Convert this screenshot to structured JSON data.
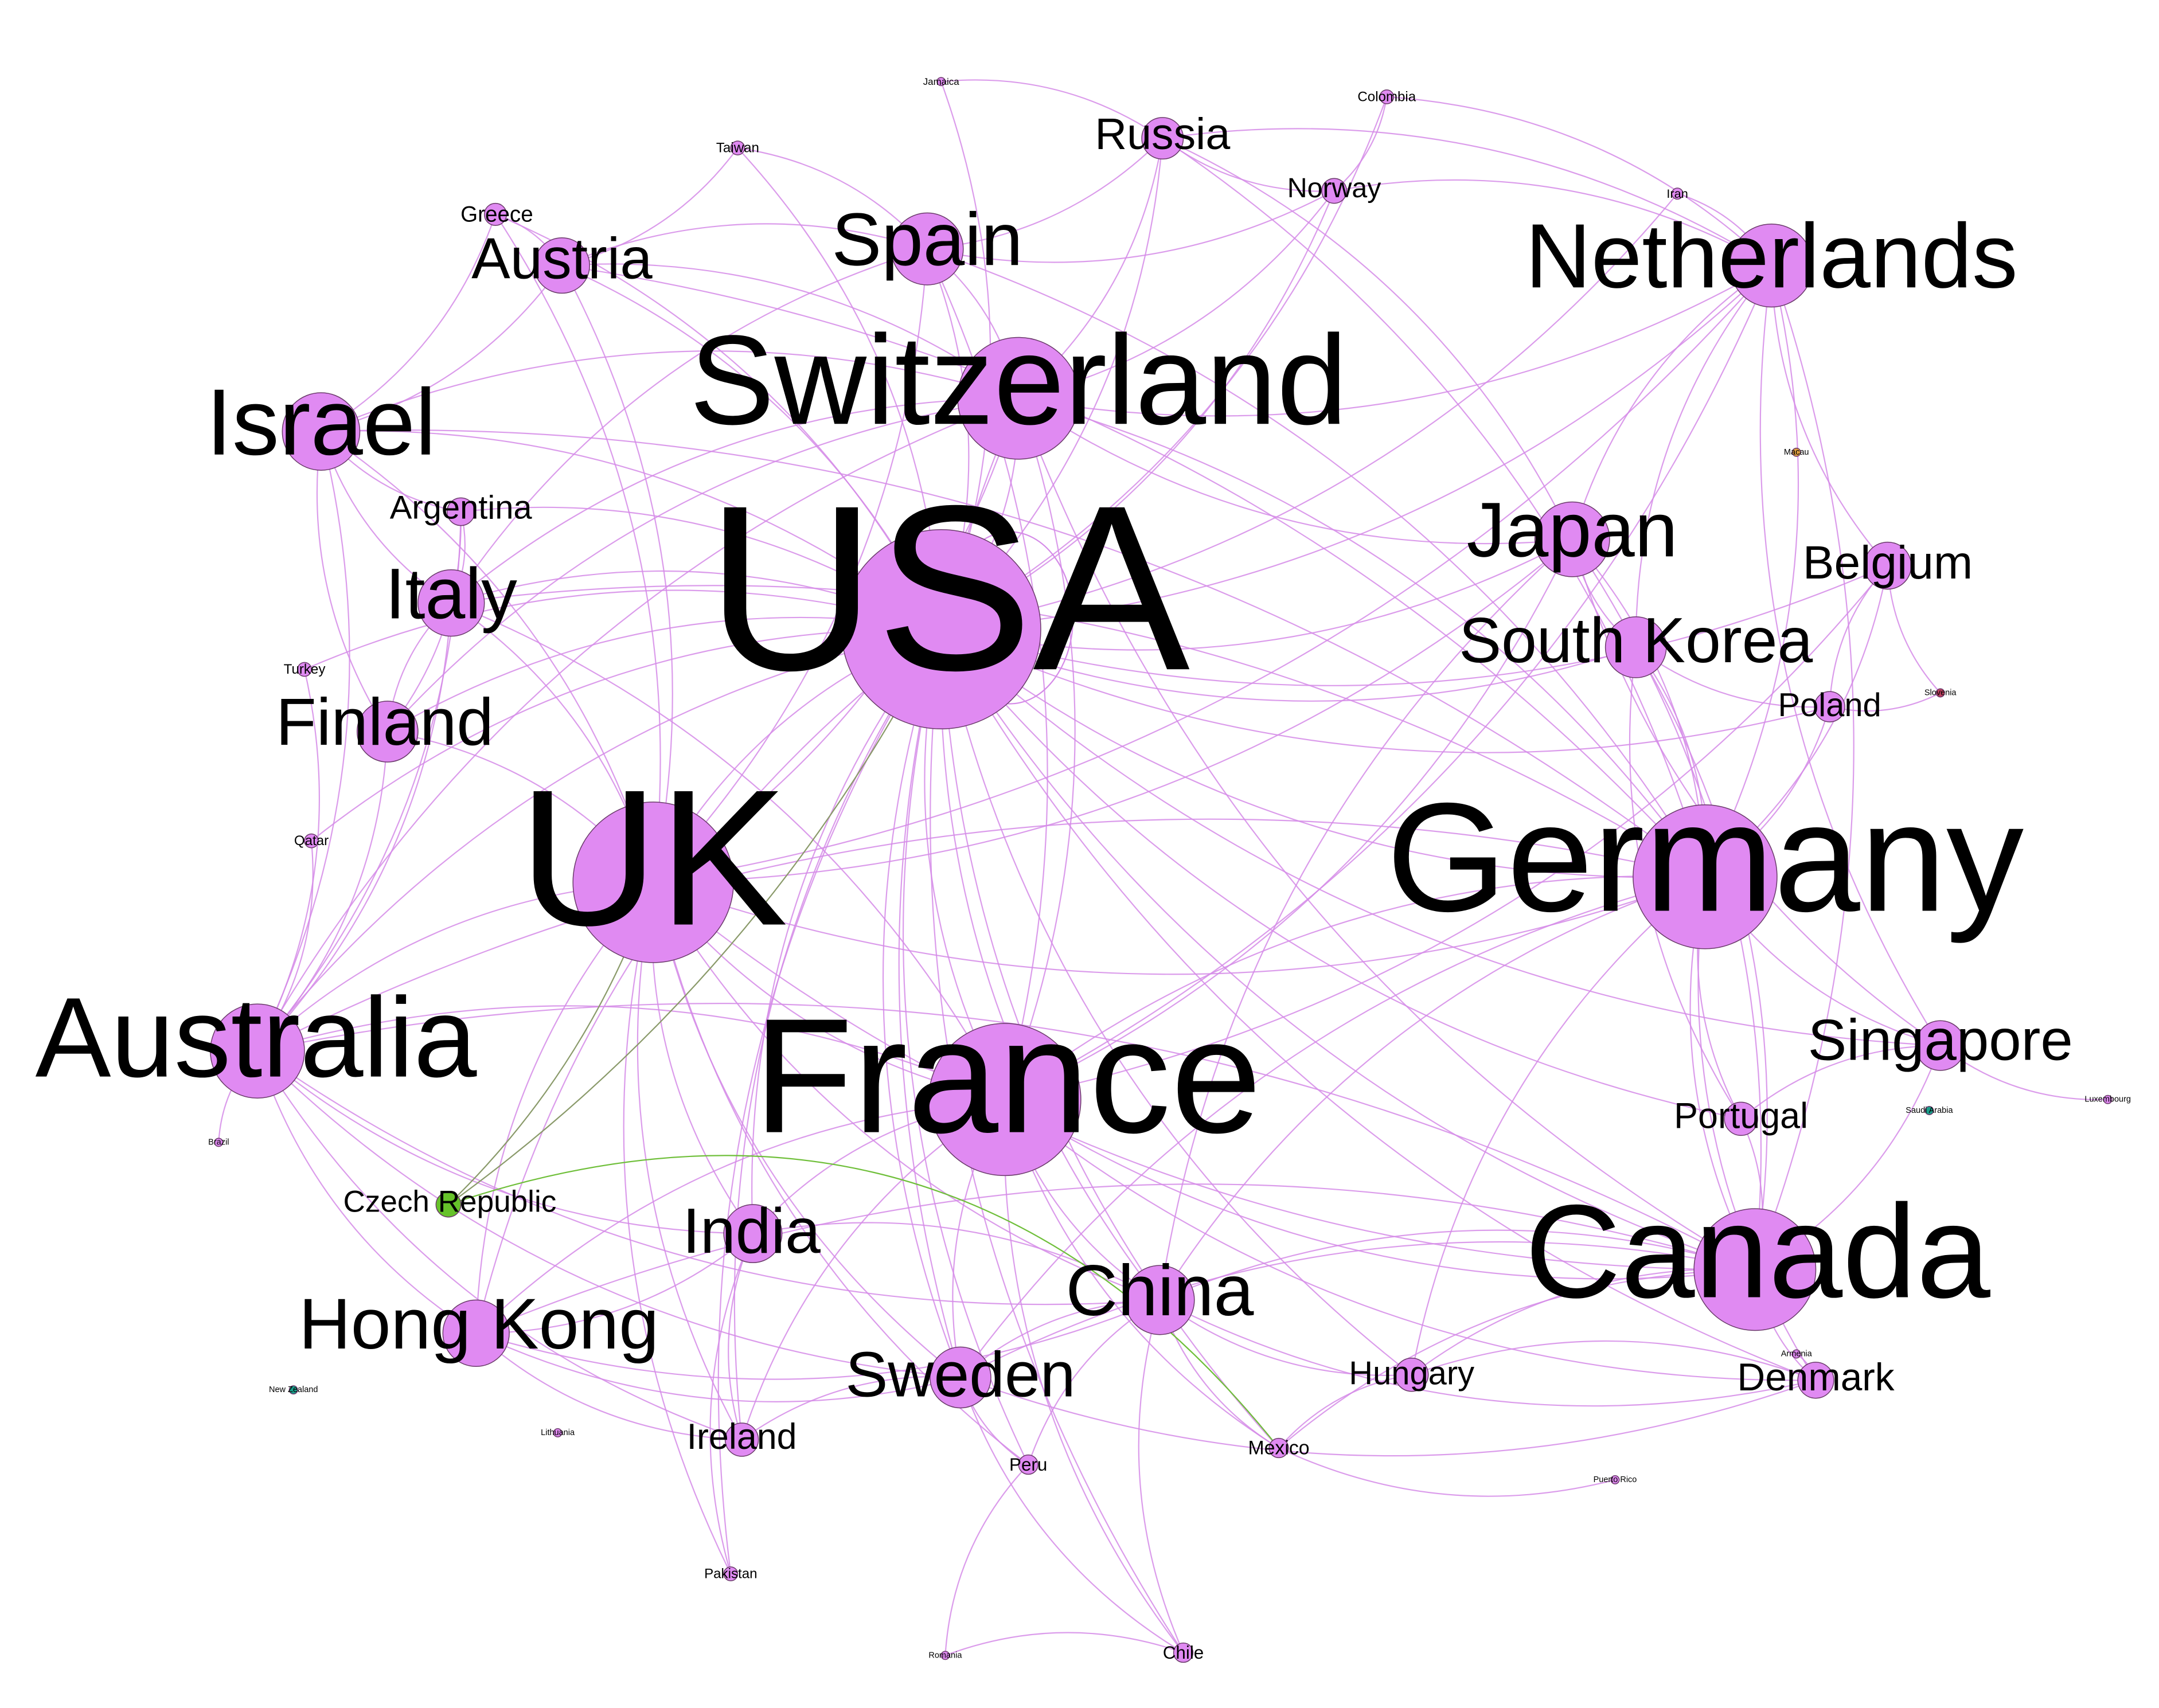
{
  "colors": {
    "node_main": "#e08af2",
    "node_green": "#66c22a",
    "node_teal": "#1a9e8a",
    "node_orange": "#e0a040",
    "node_red": "#c04060",
    "edge_main": "#d58be8",
    "edge_green": "#6fbf3a",
    "edge_olive": "#8a9a6a"
  },
  "network": {
    "nodes": [
      {
        "id": "usa",
        "label": "USA",
        "weight": 100,
        "color": "main"
      },
      {
        "id": "uk",
        "label": "UK",
        "weight": 66,
        "color": "main"
      },
      {
        "id": "germany",
        "label": "Germany",
        "weight": 64,
        "color": "main"
      },
      {
        "id": "france",
        "label": "France",
        "weight": 60,
        "color": "main"
      },
      {
        "id": "switzerland",
        "label": "Switzerland",
        "weight": 50,
        "color": "main"
      },
      {
        "id": "canada",
        "label": "Canada",
        "weight": 50,
        "color": "main"
      },
      {
        "id": "australia",
        "label": "Australia",
        "weight": 45,
        "color": "main"
      },
      {
        "id": "netherlands",
        "label": "Netherlands",
        "weight": 36,
        "color": "main"
      },
      {
        "id": "israel",
        "label": "Israel",
        "weight": 33,
        "color": "main"
      },
      {
        "id": "japan",
        "label": "Japan",
        "weight": 31,
        "color": "main"
      },
      {
        "id": "hongkong",
        "label": "Hong Kong",
        "weight": 29,
        "color": "main"
      },
      {
        "id": "spain",
        "label": "Spain",
        "weight": 29,
        "color": "main"
      },
      {
        "id": "china",
        "label": "China",
        "weight": 29,
        "color": "main"
      },
      {
        "id": "italy",
        "label": "Italy",
        "weight": 28,
        "color": "main"
      },
      {
        "id": "southkorea",
        "label": "South Korea",
        "weight": 27,
        "color": "main"
      },
      {
        "id": "finland",
        "label": "Finland",
        "weight": 27,
        "color": "main"
      },
      {
        "id": "sweden",
        "label": "Sweden",
        "weight": 27,
        "color": "main"
      },
      {
        "id": "india",
        "label": "India",
        "weight": 25,
        "color": "main"
      },
      {
        "id": "austria",
        "label": "Austria",
        "weight": 25,
        "color": "main"
      },
      {
        "id": "singapore",
        "label": "Singapore",
        "weight": 23,
        "color": "main"
      },
      {
        "id": "belgium",
        "label": "Belgium",
        "weight": 22,
        "color": "main"
      },
      {
        "id": "russia",
        "label": "Russia",
        "weight": 19,
        "color": "main"
      },
      {
        "id": "denmark",
        "label": "Denmark",
        "weight": 18,
        "color": "main"
      },
      {
        "id": "ireland",
        "label": "Ireland",
        "weight": 17,
        "color": "main"
      },
      {
        "id": "portugal",
        "label": "Portugal",
        "weight": 17,
        "color": "main"
      },
      {
        "id": "hungary",
        "label": "Hungary",
        "weight": 17,
        "color": "main"
      },
      {
        "id": "poland",
        "label": "Poland",
        "weight": 16,
        "color": "main"
      },
      {
        "id": "argentina",
        "label": "Argentina",
        "weight": 16,
        "color": "main"
      },
      {
        "id": "czech",
        "label": "Czech Republic",
        "weight": 16,
        "color": "green"
      },
      {
        "id": "norway",
        "label": "Norway",
        "weight": 15,
        "color": "main"
      },
      {
        "id": "greece",
        "label": "Greece",
        "weight": 13,
        "color": "main"
      },
      {
        "id": "mexico",
        "label": "Mexico",
        "weight": 12,
        "color": "main"
      },
      {
        "id": "chile",
        "label": "Chile",
        "weight": 12,
        "color": "main"
      },
      {
        "id": "peru",
        "label": "Peru",
        "weight": 12,
        "color": "main"
      },
      {
        "id": "colombia",
        "label": "Colombia",
        "weight": 9,
        "color": "main"
      },
      {
        "id": "pakistan",
        "label": "Pakistan",
        "weight": 9,
        "color": "main"
      },
      {
        "id": "taiwan",
        "label": "Taiwan",
        "weight": 9,
        "color": "main"
      },
      {
        "id": "turkey",
        "label": "Turkey",
        "weight": 9,
        "color": "main"
      },
      {
        "id": "qatar",
        "label": "Qatar",
        "weight": 9,
        "color": "main"
      },
      {
        "id": "iran",
        "label": "Iran",
        "weight": 8,
        "color": "main"
      },
      {
        "id": "jamaica",
        "label": "Jamaica",
        "weight": 6,
        "color": "main"
      },
      {
        "id": "newzealand",
        "label": "New Zealand",
        "weight": 6,
        "color": "teal"
      },
      {
        "id": "lithuania",
        "label": "Lithuania",
        "weight": 6,
        "color": "main"
      },
      {
        "id": "romania",
        "label": "Romania",
        "weight": 6,
        "color": "main"
      },
      {
        "id": "puertorico",
        "label": "Puerto Rico",
        "weight": 6,
        "color": "main"
      },
      {
        "id": "armenia",
        "label": "Armenia",
        "weight": 6,
        "color": "main"
      },
      {
        "id": "saudiarabia",
        "label": "Saudi Arabia",
        "weight": 6,
        "color": "teal"
      },
      {
        "id": "luxembourg",
        "label": "Luxembourg",
        "weight": 6,
        "color": "main"
      },
      {
        "id": "slovenia",
        "label": "Slovenia",
        "weight": 6,
        "color": "red"
      },
      {
        "id": "macau",
        "label": "Macau",
        "weight": 6,
        "color": "orange"
      },
      {
        "id": "brazil",
        "label": "Brazil",
        "weight": 6,
        "color": "main"
      }
    ],
    "edges": [
      [
        "usa",
        "uk"
      ],
      [
        "usa",
        "germany"
      ],
      [
        "usa",
        "france"
      ],
      [
        "usa",
        "switzerland"
      ],
      [
        "usa",
        "canada"
      ],
      [
        "usa",
        "australia"
      ],
      [
        "usa",
        "netherlands"
      ],
      [
        "usa",
        "israel"
      ],
      [
        "usa",
        "japan"
      ],
      [
        "usa",
        "hongkong"
      ],
      [
        "usa",
        "spain"
      ],
      [
        "usa",
        "china"
      ],
      [
        "usa",
        "italy"
      ],
      [
        "usa",
        "southkorea"
      ],
      [
        "usa",
        "finland"
      ],
      [
        "usa",
        "sweden"
      ],
      [
        "usa",
        "india"
      ],
      [
        "usa",
        "austria"
      ],
      [
        "usa",
        "singapore"
      ],
      [
        "usa",
        "belgium"
      ],
      [
        "usa",
        "russia"
      ],
      [
        "usa",
        "denmark"
      ],
      [
        "usa",
        "ireland"
      ],
      [
        "usa",
        "portugal"
      ],
      [
        "usa",
        "hungary"
      ],
      [
        "usa",
        "poland"
      ],
      [
        "usa",
        "argentina"
      ],
      [
        "usa",
        "norway"
      ],
      [
        "usa",
        "greece"
      ],
      [
        "usa",
        "mexico"
      ],
      [
        "usa",
        "chile"
      ],
      [
        "usa",
        "peru"
      ],
      [
        "usa",
        "colombia"
      ],
      [
        "usa",
        "taiwan"
      ],
      [
        "usa",
        "jamaica"
      ],
      [
        "usa",
        "iran"
      ],
      [
        "usa",
        "pakistan"
      ],
      [
        "usa",
        "turkey"
      ],
      [
        "usa",
        "qatar"
      ],
      [
        "uk",
        "germany"
      ],
      [
        "uk",
        "france"
      ],
      [
        "uk",
        "switzerland"
      ],
      [
        "uk",
        "canada"
      ],
      [
        "uk",
        "australia"
      ],
      [
        "uk",
        "netherlands"
      ],
      [
        "uk",
        "israel"
      ],
      [
        "uk",
        "hongkong"
      ],
      [
        "uk",
        "china"
      ],
      [
        "uk",
        "italy"
      ],
      [
        "uk",
        "finland"
      ],
      [
        "uk",
        "sweden"
      ],
      [
        "uk",
        "india"
      ],
      [
        "uk",
        "ireland"
      ],
      [
        "uk",
        "spain"
      ],
      [
        "uk",
        "austria"
      ],
      [
        "uk",
        "japan"
      ],
      [
        "uk",
        "greece"
      ],
      [
        "uk",
        "peru"
      ],
      [
        "uk",
        "pakistan"
      ],
      [
        "germany",
        "france"
      ],
      [
        "germany",
        "switzerland"
      ],
      [
        "germany",
        "canada"
      ],
      [
        "germany",
        "netherlands"
      ],
      [
        "germany",
        "japan"
      ],
      [
        "germany",
        "southkorea"
      ],
      [
        "germany",
        "singapore"
      ],
      [
        "germany",
        "belgium"
      ],
      [
        "germany",
        "poland"
      ],
      [
        "germany",
        "portugal"
      ],
      [
        "germany",
        "denmark"
      ],
      [
        "germany",
        "austria"
      ],
      [
        "germany",
        "spain"
      ],
      [
        "germany",
        "china"
      ],
      [
        "germany",
        "sweden"
      ],
      [
        "germany",
        "hungary"
      ],
      [
        "germany",
        "italy"
      ],
      [
        "germany",
        "russia"
      ],
      [
        "germany",
        "israel"
      ],
      [
        "germany",
        "australia"
      ],
      [
        "france",
        "switzerland"
      ],
      [
        "france",
        "canada"
      ],
      [
        "france",
        "australia"
      ],
      [
        "france",
        "china"
      ],
      [
        "france",
        "sweden"
      ],
      [
        "france",
        "india"
      ],
      [
        "france",
        "hongkong"
      ],
      [
        "france",
        "spain"
      ],
      [
        "france",
        "italy"
      ],
      [
        "france",
        "belgium"
      ],
      [
        "france",
        "netherlands"
      ],
      [
        "france",
        "ireland"
      ],
      [
        "france",
        "mexico"
      ],
      [
        "france",
        "chile"
      ],
      [
        "france",
        "denmark"
      ],
      [
        "france",
        "japan"
      ],
      [
        "switzerland",
        "spain"
      ],
      [
        "switzerland",
        "austria"
      ],
      [
        "switzerland",
        "israel"
      ],
      [
        "switzerland",
        "russia"
      ],
      [
        "switzerland",
        "norway"
      ],
      [
        "switzerland",
        "netherlands"
      ],
      [
        "switzerland",
        "italy"
      ],
      [
        "switzerland",
        "canada"
      ],
      [
        "switzerland",
        "japan"
      ],
      [
        "switzerland",
        "australia"
      ],
      [
        "switzerland",
        "finland"
      ],
      [
        "canada",
        "japan"
      ],
      [
        "canada",
        "southkorea"
      ],
      [
        "canada",
        "china"
      ],
      [
        "canada",
        "denmark"
      ],
      [
        "canada",
        "hungary"
      ],
      [
        "canada",
        "sweden"
      ],
      [
        "canada",
        "singapore"
      ],
      [
        "canada",
        "netherlands"
      ],
      [
        "canada",
        "portugal"
      ],
      [
        "canada",
        "hongkong"
      ],
      [
        "canada",
        "mexico"
      ],
      [
        "canada",
        "australia"
      ],
      [
        "australia",
        "israel"
      ],
      [
        "australia",
        "italy"
      ],
      [
        "australia",
        "finland"
      ],
      [
        "australia",
        "hongkong"
      ],
      [
        "australia",
        "china"
      ],
      [
        "australia",
        "sweden"
      ],
      [
        "australia",
        "india"
      ],
      [
        "australia",
        "argentina"
      ],
      [
        "australia",
        "brazil"
      ],
      [
        "australia",
        "ireland"
      ],
      [
        "australia",
        "qatar"
      ],
      [
        "australia",
        "turkey"
      ],
      [
        "netherlands",
        "belgium"
      ],
      [
        "netherlands",
        "japan"
      ],
      [
        "netherlands",
        "southkorea"
      ],
      [
        "netherlands",
        "norway"
      ],
      [
        "netherlands",
        "colombia"
      ],
      [
        "netherlands",
        "russia"
      ],
      [
        "netherlands",
        "singapore"
      ],
      [
        "netherlands",
        "iran"
      ],
      [
        "israel",
        "italy"
      ],
      [
        "israel",
        "finland"
      ],
      [
        "israel",
        "austria"
      ],
      [
        "israel",
        "greece"
      ],
      [
        "israel",
        "argentina"
      ],
      [
        "japan",
        "southkorea"
      ],
      [
        "japan",
        "china"
      ],
      [
        "japan",
        "singapore"
      ],
      [
        "japan",
        "russia"
      ],
      [
        "hongkong",
        "china"
      ],
      [
        "hongkong",
        "india"
      ],
      [
        "hongkong",
        "sweden"
      ],
      [
        "hongkong",
        "ireland"
      ],
      [
        "spain",
        "austria"
      ],
      [
        "spain",
        "italy"
      ],
      [
        "spain",
        "russia"
      ],
      [
        "spain",
        "taiwan"
      ],
      [
        "china",
        "sweden"
      ],
      [
        "china",
        "india"
      ],
      [
        "china",
        "hungary"
      ],
      [
        "china",
        "mexico"
      ],
      [
        "china",
        "peru"
      ],
      [
        "china",
        "chile"
      ],
      [
        "china",
        "denmark"
      ],
      [
        "italy",
        "finland"
      ],
      [
        "italy",
        "argentina"
      ],
      [
        "sweden",
        "ireland"
      ],
      [
        "sweden",
        "chile"
      ],
      [
        "sweden",
        "peru"
      ],
      [
        "sweden",
        "denmark"
      ],
      [
        "india",
        "ireland"
      ],
      [
        "india",
        "pakistan"
      ],
      [
        "austria",
        "greece"
      ],
      [
        "austria",
        "taiwan"
      ],
      [
        "singapore",
        "portugal"
      ],
      [
        "singapore",
        "luxembourg"
      ],
      [
        "belgium",
        "poland"
      ],
      [
        "belgium",
        "slovenia"
      ],
      [
        "russia",
        "norway"
      ],
      [
        "russia",
        "jamaica"
      ],
      [
        "denmark",
        "hungary"
      ],
      [
        "denmark",
        "armenia"
      ],
      [
        "chile",
        "romania"
      ],
      [
        "peru",
        "romania"
      ],
      [
        "mexico",
        "puertorico"
      ],
      [
        "norway",
        "colombia"
      ],
      [
        "finland",
        "argentina"
      ],
      [
        "hungary",
        "mexico"
      ],
      [
        "southkorea",
        "poland"
      ],
      [
        "southkorea",
        "portugal"
      ],
      [
        "poland",
        "slovenia"
      ],
      [
        "spain",
        "norway"
      ],
      [
        "switzerland",
        "sweden"
      ]
    ],
    "green_edges": [
      [
        "czech",
        "uk"
      ],
      [
        "czech",
        "usa"
      ],
      [
        "czech",
        "mexico"
      ]
    ]
  }
}
